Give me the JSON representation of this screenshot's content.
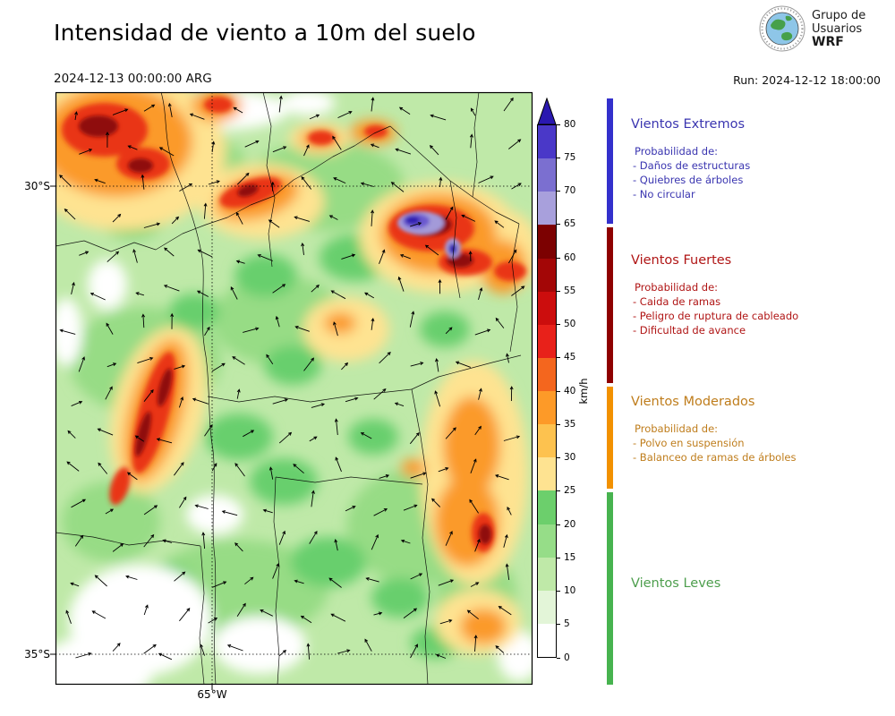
{
  "header": {
    "title": "Intensidad de viento a 10m del suelo",
    "valid_datetime": "2024-12-13 00:00:00 ARG",
    "run_label": "Run: 2024-12-12 18:00:00",
    "logo": {
      "line1": "Grupo de",
      "line2": "Usuarios",
      "line3": "WRF"
    }
  },
  "map": {
    "lat_labels": [
      "30°S",
      "35°S"
    ],
    "lon_label": "65°W"
  },
  "colorbar": {
    "unit": "km/h",
    "ticks": [
      0,
      5,
      10,
      15,
      20,
      25,
      30,
      35,
      40,
      45,
      50,
      55,
      60,
      65,
      70,
      75,
      80
    ],
    "segment_colors": [
      "#ffffff",
      "#e3f5d8",
      "#bfe9a8",
      "#96dd88",
      "#6ccf6c",
      "#fee391",
      "#fdc24f",
      "#fd9a28",
      "#f4661e",
      "#e8211a",
      "#cc0d0d",
      "#a30606",
      "#7c0101",
      "#a8a0dc",
      "#7b6fd0",
      "#4a38c8"
    ],
    "arrow_color": "#2a18b0"
  },
  "legend": {
    "sections": [
      {
        "id": "extremos",
        "title": "Vientos Extremos",
        "subtitle": "Probabilidad de:",
        "items": [
          "- Daños de estructuras",
          "- Quiebres de árboles",
          "- No circular"
        ],
        "text_color": "#3a35b0",
        "bar_color": "#3330cc"
      },
      {
        "id": "fuertes",
        "title": "Vientos Fuertes",
        "subtitle": "Probabilidad de:",
        "items": [
          "- Caida de ramas",
          "- Peligro de ruptura de cableado",
          "- Dificultad de avance"
        ],
        "text_color": "#b01515",
        "bar_color": "#8e0000"
      },
      {
        "id": "moderados",
        "title": "Vientos Moderados",
        "subtitle": "Probabilidad de:",
        "items": [
          "- Polvo en suspensión",
          "- Balanceo de ramas de árboles"
        ],
        "text_color": "#bf7d1c",
        "bar_color": "#f29100"
      },
      {
        "id": "leves",
        "title": "Vientos Leves",
        "subtitle": "",
        "items": [],
        "text_color": "#4d9e4d",
        "bar_color": "#47b34f"
      }
    ]
  }
}
